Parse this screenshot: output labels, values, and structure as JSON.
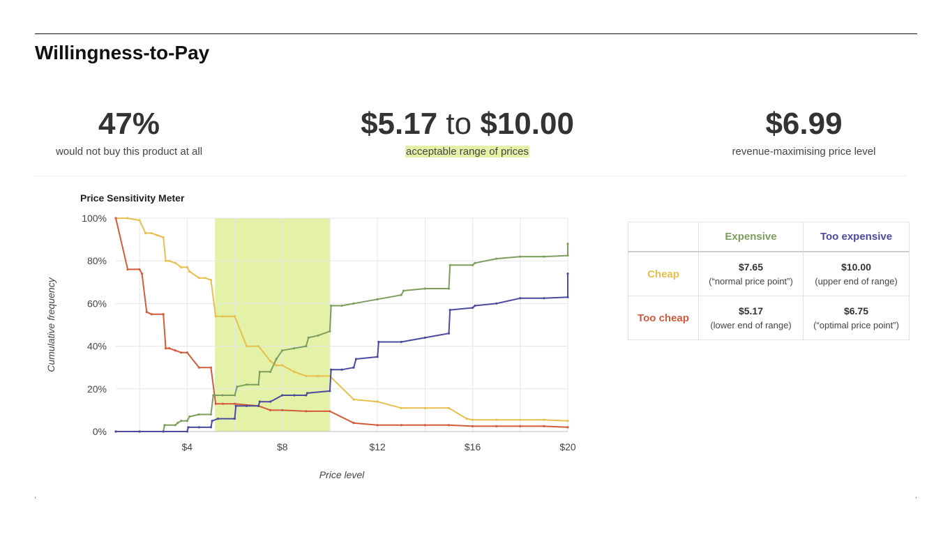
{
  "page": {
    "title": "Willingness-to-Pay"
  },
  "stats": [
    {
      "value": "47%",
      "label": "would not buy this product at all"
    },
    {
      "low": "$5.17",
      "to": "to",
      "high": "$10.00",
      "label": "acceptable range of prices"
    },
    {
      "value": "$6.99",
      "label": "revenue-maximising price level"
    }
  ],
  "table": {
    "col_headers": [
      "Expensive",
      "Too expensive"
    ],
    "rows": [
      {
        "label": "Cheap",
        "cells": [
          {
            "value": "$7.65",
            "note": "(“normal price point”)"
          },
          {
            "value": "$10.00",
            "note": "(upper end of range)"
          }
        ]
      },
      {
        "label": "Too cheap",
        "cells": [
          {
            "value": "$5.17",
            "note": "(lower end of range)"
          },
          {
            "value": "$6.75",
            "note": "(“optimal price point”)"
          }
        ]
      }
    ]
  },
  "colors": {
    "cheap": "#e8bf4d",
    "too_cheap": "#d45b3a",
    "expensive": "#7a9e5c",
    "too_expensive": "#4a4aa0",
    "band": "#e4f2a8"
  },
  "chart_data": {
    "type": "line",
    "title": "Price Sensitivity Meter",
    "xlabel": "Price level",
    "ylabel": "Cumulative frequency",
    "xlim": [
      1,
      20
    ],
    "ylim": [
      0,
      100
    ],
    "x_ticks": [
      4,
      8,
      12,
      16,
      20
    ],
    "x_tick_labels": [
      "$4",
      "$8",
      "$12",
      "$16",
      "$20"
    ],
    "y_ticks": [
      0,
      20,
      40,
      60,
      80,
      100
    ],
    "y_tick_labels": [
      "0%",
      "20%",
      "40%",
      "60%",
      "80%",
      "100%"
    ],
    "grid": true,
    "shaded_range": [
      5.17,
      10.0
    ],
    "series": [
      {
        "key": "cheap",
        "points": [
          [
            1,
            100
          ],
          [
            1.5,
            100
          ],
          [
            2,
            99
          ],
          [
            2.25,
            93
          ],
          [
            2.5,
            93
          ],
          [
            2.75,
            92
          ],
          [
            3,
            91
          ],
          [
            3.1,
            80
          ],
          [
            3.25,
            80
          ],
          [
            3.5,
            79
          ],
          [
            3.75,
            77
          ],
          [
            4,
            77
          ],
          [
            4.1,
            75
          ],
          [
            4.5,
            72
          ],
          [
            4.75,
            72
          ],
          [
            5,
            71
          ],
          [
            5.2,
            54
          ],
          [
            5.5,
            54
          ],
          [
            6,
            54
          ],
          [
            6.5,
            40
          ],
          [
            7,
            40
          ],
          [
            7.5,
            33
          ],
          [
            7.75,
            31
          ],
          [
            8,
            31
          ],
          [
            8.5,
            28
          ],
          [
            9,
            26
          ],
          [
            9.5,
            26
          ],
          [
            10,
            26
          ],
          [
            11,
            15
          ],
          [
            12,
            14
          ],
          [
            13,
            11
          ],
          [
            14,
            11
          ],
          [
            15,
            11
          ],
          [
            15.75,
            6
          ],
          [
            16,
            5.5
          ],
          [
            17,
            5.5
          ],
          [
            18,
            5.5
          ],
          [
            19,
            5.5
          ],
          [
            20,
            5
          ]
        ]
      },
      {
        "key": "too_cheap",
        "points": [
          [
            1,
            100
          ],
          [
            1.5,
            76
          ],
          [
            2,
            76
          ],
          [
            2.1,
            74
          ],
          [
            2.3,
            56
          ],
          [
            2.5,
            55
          ],
          [
            3,
            55
          ],
          [
            3.1,
            39
          ],
          [
            3.25,
            39
          ],
          [
            3.5,
            38
          ],
          [
            3.75,
            37
          ],
          [
            4,
            37
          ],
          [
            4.5,
            30
          ],
          [
            5,
            30
          ],
          [
            5.2,
            13
          ],
          [
            5.5,
            13
          ],
          [
            6,
            13
          ],
          [
            7,
            12
          ],
          [
            7.5,
            10
          ],
          [
            8,
            10
          ],
          [
            9,
            9.5
          ],
          [
            10,
            9.5
          ],
          [
            11,
            4
          ],
          [
            12,
            3
          ],
          [
            13,
            3
          ],
          [
            14,
            3
          ],
          [
            15,
            3
          ],
          [
            16,
            2.5
          ],
          [
            17,
            2.5
          ],
          [
            18,
            2.5
          ],
          [
            19,
            2.5
          ],
          [
            20,
            2
          ]
        ]
      },
      {
        "key": "expensive",
        "points": [
          [
            1,
            0
          ],
          [
            2,
            0
          ],
          [
            3,
            0
          ],
          [
            3.05,
            3
          ],
          [
            3.5,
            3
          ],
          [
            3.6,
            4
          ],
          [
            3.75,
            5
          ],
          [
            4,
            5
          ],
          [
            4.1,
            7
          ],
          [
            4.5,
            8
          ],
          [
            5,
            8
          ],
          [
            5.1,
            17
          ],
          [
            5.5,
            17
          ],
          [
            6,
            17
          ],
          [
            6.1,
            21
          ],
          [
            6.5,
            22
          ],
          [
            7,
            22
          ],
          [
            7.05,
            28
          ],
          [
            7.5,
            28
          ],
          [
            7.75,
            34
          ],
          [
            8,
            38
          ],
          [
            8.5,
            39
          ],
          [
            9,
            40
          ],
          [
            9.1,
            44
          ],
          [
            9.5,
            45
          ],
          [
            10,
            47
          ],
          [
            10.05,
            59
          ],
          [
            10.5,
            59
          ],
          [
            11,
            60
          ],
          [
            12,
            62
          ],
          [
            13,
            64
          ],
          [
            13.1,
            66
          ],
          [
            14,
            67
          ],
          [
            15,
            67
          ],
          [
            15.05,
            78
          ],
          [
            16,
            78
          ],
          [
            16.1,
            79
          ],
          [
            17,
            81
          ],
          [
            18,
            82
          ],
          [
            19,
            82
          ],
          [
            20,
            82.5
          ],
          [
            20,
            88
          ]
        ]
      },
      {
        "key": "too_expensive",
        "points": [
          [
            1,
            0
          ],
          [
            2,
            0
          ],
          [
            3,
            0
          ],
          [
            4,
            0
          ],
          [
            4.05,
            2
          ],
          [
            4.5,
            2
          ],
          [
            5,
            2
          ],
          [
            5.05,
            5
          ],
          [
            5.3,
            6
          ],
          [
            6,
            6
          ],
          [
            6.05,
            12
          ],
          [
            6.5,
            12
          ],
          [
            7,
            12
          ],
          [
            7.05,
            14
          ],
          [
            7.5,
            14
          ],
          [
            8,
            17
          ],
          [
            8.5,
            17
          ],
          [
            9,
            17
          ],
          [
            9.05,
            18
          ],
          [
            10,
            19
          ],
          [
            10.05,
            29
          ],
          [
            10.5,
            29
          ],
          [
            11,
            30
          ],
          [
            11.1,
            34
          ],
          [
            12,
            35
          ],
          [
            12.05,
            42
          ],
          [
            13,
            42
          ],
          [
            14,
            44
          ],
          [
            15,
            46
          ],
          [
            15.05,
            57
          ],
          [
            16,
            58
          ],
          [
            16.1,
            59
          ],
          [
            17,
            60
          ],
          [
            18,
            62.5
          ],
          [
            19,
            62.5
          ],
          [
            20,
            63
          ],
          [
            20,
            74
          ]
        ]
      }
    ]
  }
}
